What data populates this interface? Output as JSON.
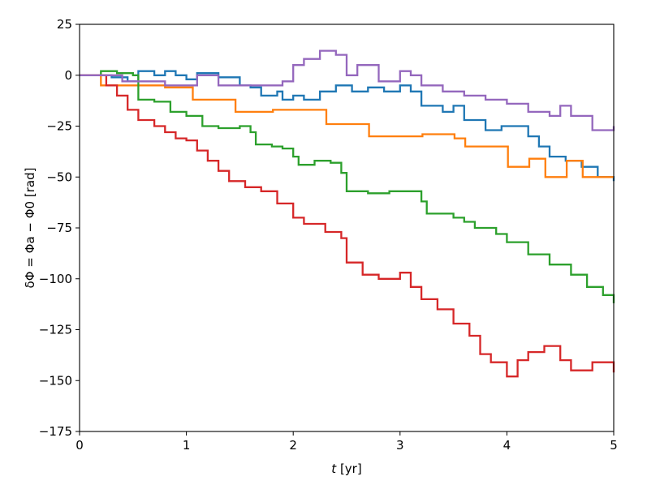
{
  "chart_data": {
    "type": "line",
    "xlabel": {
      "var": "t",
      "unit": " [yr]"
    },
    "ylabel": "δΦ = Φa − Φ0 [rad]",
    "xlim": [
      0,
      5
    ],
    "ylim": [
      -175,
      25
    ],
    "xticks": [
      "0",
      "1",
      "2",
      "3",
      "4",
      "5"
    ],
    "yticks": [
      "25",
      "0",
      "−25",
      "−50",
      "−75",
      "−100",
      "−125",
      "−150",
      "−175"
    ],
    "grid": false,
    "legend": "none",
    "series": [
      {
        "color": "#1f77b4",
        "points": [
          [
            0,
            0
          ],
          [
            0.2,
            0
          ],
          [
            0.3,
            -1
          ],
          [
            0.45,
            -3
          ],
          [
            0.55,
            2
          ],
          [
            0.7,
            0
          ],
          [
            0.8,
            2
          ],
          [
            0.9,
            0
          ],
          [
            1.0,
            -2
          ],
          [
            1.1,
            1
          ],
          [
            1.3,
            -1
          ],
          [
            1.5,
            -5
          ],
          [
            1.6,
            -6
          ],
          [
            1.7,
            -10
          ],
          [
            1.85,
            -8
          ],
          [
            1.9,
            -12
          ],
          [
            2.0,
            -10
          ],
          [
            2.1,
            -12
          ],
          [
            2.25,
            -8
          ],
          [
            2.4,
            -5
          ],
          [
            2.55,
            -8
          ],
          [
            2.7,
            -6
          ],
          [
            2.85,
            -8
          ],
          [
            3.0,
            -5
          ],
          [
            3.1,
            -8
          ],
          [
            3.2,
            -15
          ],
          [
            3.4,
            -18
          ],
          [
            3.5,
            -15
          ],
          [
            3.6,
            -22
          ],
          [
            3.8,
            -27
          ],
          [
            3.95,
            -25
          ],
          [
            4.2,
            -30
          ],
          [
            4.3,
            -35
          ],
          [
            4.4,
            -40
          ],
          [
            4.55,
            -42
          ],
          [
            4.7,
            -45
          ],
          [
            4.85,
            -50
          ],
          [
            5.0,
            -52
          ]
        ]
      },
      {
        "color": "#ff7f0e",
        "points": [
          [
            0,
            0
          ],
          [
            0.2,
            -5
          ],
          [
            0.5,
            -5
          ],
          [
            0.8,
            -6
          ],
          [
            1.05,
            -6
          ],
          [
            1.06,
            -12
          ],
          [
            1.45,
            -12
          ],
          [
            1.46,
            -18
          ],
          [
            1.8,
            -18
          ],
          [
            1.81,
            -17
          ],
          [
            2.3,
            -17
          ],
          [
            2.31,
            -24
          ],
          [
            2.7,
            -24
          ],
          [
            2.71,
            -30
          ],
          [
            3.2,
            -30
          ],
          [
            3.21,
            -29
          ],
          [
            3.5,
            -29
          ],
          [
            3.51,
            -31
          ],
          [
            3.6,
            -31
          ],
          [
            3.61,
            -35
          ],
          [
            3.9,
            -35
          ],
          [
            4.0,
            -35
          ],
          [
            4.01,
            -45
          ],
          [
            4.2,
            -45
          ],
          [
            4.21,
            -41
          ],
          [
            4.35,
            -41
          ],
          [
            4.36,
            -50
          ],
          [
            4.55,
            -50
          ],
          [
            4.56,
            -42
          ],
          [
            4.7,
            -42
          ],
          [
            4.71,
            -50
          ],
          [
            5.0,
            -50
          ]
        ]
      },
      {
        "color": "#2ca02c",
        "points": [
          [
            0,
            0
          ],
          [
            0.2,
            2
          ],
          [
            0.35,
            1
          ],
          [
            0.5,
            0
          ],
          [
            0.55,
            -12
          ],
          [
            0.7,
            -13
          ],
          [
            0.8,
            -13
          ],
          [
            0.85,
            -18
          ],
          [
            1.0,
            -20
          ],
          [
            1.1,
            -20
          ],
          [
            1.15,
            -25
          ],
          [
            1.3,
            -26
          ],
          [
            1.5,
            -25
          ],
          [
            1.6,
            -28
          ],
          [
            1.65,
            -34
          ],
          [
            1.8,
            -35
          ],
          [
            1.9,
            -36
          ],
          [
            2.0,
            -40
          ],
          [
            2.05,
            -44
          ],
          [
            2.2,
            -42
          ],
          [
            2.35,
            -43
          ],
          [
            2.45,
            -48
          ],
          [
            2.5,
            -57
          ],
          [
            2.7,
            -58
          ],
          [
            2.9,
            -57
          ],
          [
            3.1,
            -57
          ],
          [
            3.2,
            -62
          ],
          [
            3.25,
            -68
          ],
          [
            3.5,
            -70
          ],
          [
            3.6,
            -72
          ],
          [
            3.7,
            -75
          ],
          [
            3.9,
            -78
          ],
          [
            4.0,
            -82
          ],
          [
            4.2,
            -88
          ],
          [
            4.4,
            -93
          ],
          [
            4.6,
            -98
          ],
          [
            4.75,
            -104
          ],
          [
            4.9,
            -108
          ],
          [
            5.0,
            -112
          ]
        ]
      },
      {
        "color": "#d62728",
        "points": [
          [
            0,
            0
          ],
          [
            0.15,
            0
          ],
          [
            0.25,
            -5
          ],
          [
            0.35,
            -10
          ],
          [
            0.45,
            -17
          ],
          [
            0.55,
            -22
          ],
          [
            0.7,
            -25
          ],
          [
            0.8,
            -28
          ],
          [
            0.9,
            -31
          ],
          [
            1.0,
            -32
          ],
          [
            1.1,
            -37
          ],
          [
            1.2,
            -42
          ],
          [
            1.3,
            -47
          ],
          [
            1.4,
            -52
          ],
          [
            1.55,
            -55
          ],
          [
            1.7,
            -57
          ],
          [
            1.85,
            -63
          ],
          [
            2.0,
            -70
          ],
          [
            2.1,
            -73
          ],
          [
            2.3,
            -77
          ],
          [
            2.45,
            -80
          ],
          [
            2.5,
            -92
          ],
          [
            2.65,
            -98
          ],
          [
            2.8,
            -100
          ],
          [
            3.0,
            -97
          ],
          [
            3.1,
            -104
          ],
          [
            3.2,
            -110
          ],
          [
            3.35,
            -115
          ],
          [
            3.5,
            -122
          ],
          [
            3.65,
            -128
          ],
          [
            3.75,
            -137
          ],
          [
            3.85,
            -141
          ],
          [
            4.0,
            -148
          ],
          [
            4.1,
            -140
          ],
          [
            4.2,
            -136
          ],
          [
            4.35,
            -133
          ],
          [
            4.5,
            -140
          ],
          [
            4.6,
            -145
          ],
          [
            4.8,
            -141
          ],
          [
            5.0,
            -146
          ]
        ]
      },
      {
        "color": "#9467bd",
        "points": [
          [
            0,
            0
          ],
          [
            0.4,
            -3
          ],
          [
            0.8,
            -5
          ],
          [
            1.0,
            -5
          ],
          [
            1.1,
            0
          ],
          [
            1.3,
            -5
          ],
          [
            1.5,
            -5
          ],
          [
            1.7,
            -5
          ],
          [
            1.9,
            -3
          ],
          [
            2.0,
            5
          ],
          [
            2.1,
            8
          ],
          [
            2.25,
            12
          ],
          [
            2.4,
            10
          ],
          [
            2.5,
            0
          ],
          [
            2.6,
            5
          ],
          [
            2.8,
            -3
          ],
          [
            3.0,
            2
          ],
          [
            3.1,
            0
          ],
          [
            3.2,
            -5
          ],
          [
            3.4,
            -8
          ],
          [
            3.6,
            -10
          ],
          [
            3.8,
            -12
          ],
          [
            4.0,
            -14
          ],
          [
            4.2,
            -18
          ],
          [
            4.4,
            -20
          ],
          [
            4.5,
            -15
          ],
          [
            4.6,
            -20
          ],
          [
            4.8,
            -27
          ],
          [
            5.0,
            -25
          ]
        ]
      }
    ]
  }
}
